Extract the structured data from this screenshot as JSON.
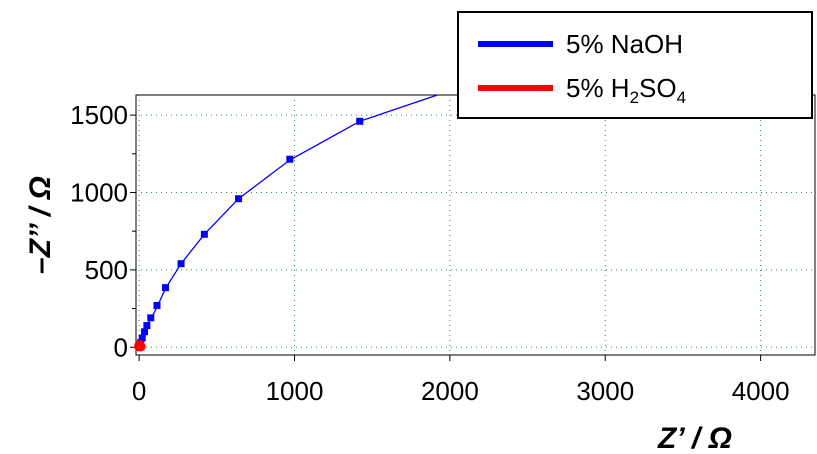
{
  "chart_data": {
    "type": "scatter",
    "xlabel": "Z’ / Ω",
    "ylabel": "–Z’’ / Ω",
    "xlim": [
      -20,
      4350
    ],
    "ylim": [
      -50,
      1630
    ],
    "x_ticks": [
      0,
      1000,
      2000,
      3000,
      4000
    ],
    "y_ticks": [
      0,
      500,
      1000,
      1500
    ],
    "grid": true,
    "legend": "top-right",
    "series": [
      {
        "name": "5% NaOH",
        "color": "#0000ff",
        "style": "line-with-square-markers",
        "curve_x": [
          0,
          10,
          25,
          50,
          80,
          120,
          170,
          270,
          420,
          640,
          970,
          1420,
          1920
        ],
        "curve_y": [
          0,
          30,
          90,
          140,
          190,
          270,
          380,
          540,
          730,
          960,
          1210,
          1460,
          1630
        ],
        "points": [
          {
            "x": 5,
            "y": 5
          },
          {
            "x": 10,
            "y": 30
          },
          {
            "x": 20,
            "y": 60
          },
          {
            "x": 35,
            "y": 100
          },
          {
            "x": 50,
            "y": 140
          },
          {
            "x": 75,
            "y": 190
          },
          {
            "x": 115,
            "y": 270
          },
          {
            "x": 170,
            "y": 385
          },
          {
            "x": 270,
            "y": 540
          },
          {
            "x": 420,
            "y": 730
          },
          {
            "x": 640,
            "y": 960
          },
          {
            "x": 970,
            "y": 1215
          },
          {
            "x": 1420,
            "y": 1460
          }
        ]
      },
      {
        "name": "5% H",
        "name_sub1": "2",
        "name_mid": "SO",
        "name_sub2": "4",
        "color": "#ff0000",
        "style": "circle-markers",
        "points": [
          {
            "x": 0,
            "y": 5
          },
          {
            "x": 5,
            "y": 10
          },
          {
            "x": 10,
            "y": 5
          },
          {
            "x": 2,
            "y": 15
          }
        ]
      }
    ]
  }
}
